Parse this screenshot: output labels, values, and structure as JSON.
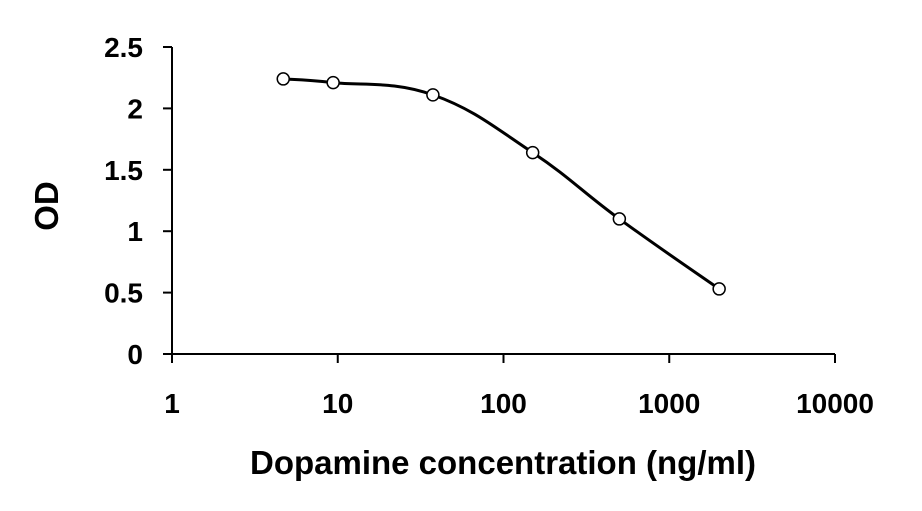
{
  "chart_data": {
    "type": "line",
    "title": "",
    "xlabel": "Dopamine concentration (ng/ml)",
    "ylabel": "OD",
    "xscale": "log",
    "xlim": [
      1,
      10000
    ],
    "ylim": [
      0,
      2.5
    ],
    "x_ticks": [
      1,
      10,
      100,
      1000,
      10000
    ],
    "x_tick_labels": [
      "1",
      "10",
      "100",
      "1000",
      "10000"
    ],
    "y_ticks": [
      0,
      0.5,
      1,
      1.5,
      2,
      2.5
    ],
    "y_tick_labels": [
      "0",
      "0.5",
      "1",
      "1.5",
      "2",
      "2.5"
    ],
    "grid": false,
    "legend": "none",
    "series": [
      {
        "x": [
          4.69,
          9.38,
          37.5,
          150,
          500,
          2000
        ],
        "y": [
          2.24,
          2.21,
          2.11,
          1.64,
          1.1,
          0.53
        ],
        "line_color": "#000000",
        "marker": "open-circle",
        "smooth": true
      }
    ]
  }
}
